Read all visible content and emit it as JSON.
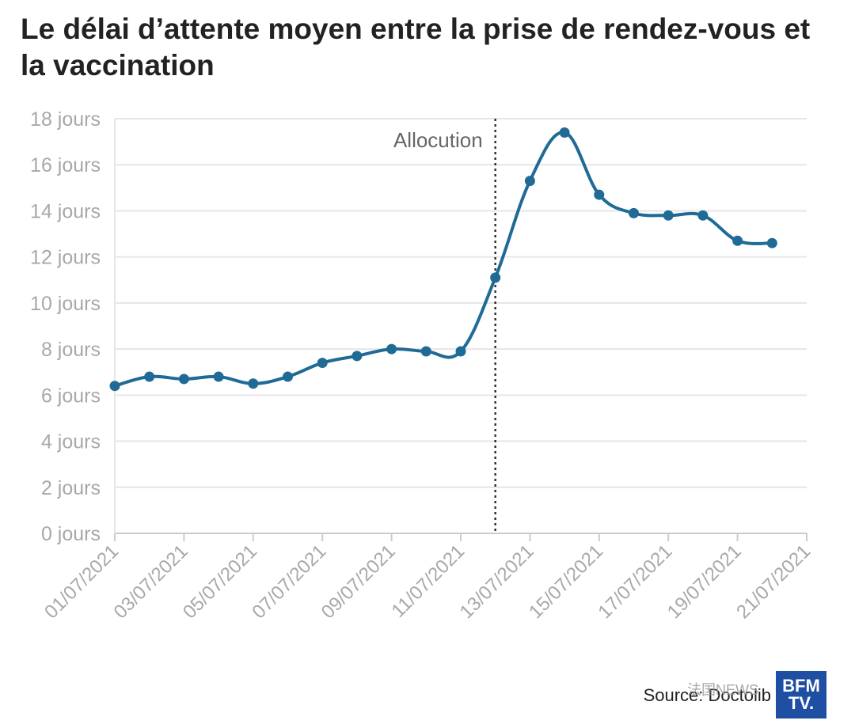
{
  "chart_data": {
    "type": "line",
    "title": "Le délai d’attente moyen entre la prise de rendez-vous et la vaccination",
    "xlabel": "",
    "ylabel": "",
    "ylim": [
      0,
      18
    ],
    "y_ticks": [
      0,
      2,
      4,
      6,
      8,
      10,
      12,
      14,
      16,
      18
    ],
    "y_tick_labels": [
      "0 jours",
      "2 jours",
      "4 jours",
      "6 jours",
      "8 jours",
      "10 jours",
      "12 jours",
      "14 jours",
      "16 jours",
      "18 jours"
    ],
    "x_tick_labels": [
      "01/07/2021",
      "03/07/2021",
      "05/07/2021",
      "07/07/2021",
      "09/07/2021",
      "11/07/2021",
      "13/07/2021",
      "15/07/2021",
      "17/07/2021",
      "19/07/2021",
      "21/07/2021"
    ],
    "x_day_range": [
      1,
      21
    ],
    "series": [
      {
        "name": "Délai d’attente moyen",
        "color": "#1f6b95",
        "x_days": [
          1,
          2,
          3,
          4,
          5,
          6,
          7,
          8,
          9,
          10,
          11,
          12,
          13,
          14,
          15,
          16,
          17,
          18,
          19,
          20
        ],
        "values": [
          6.4,
          6.8,
          6.7,
          6.8,
          6.5,
          6.8,
          7.4,
          7.7,
          8.0,
          7.9,
          7.9,
          11.1,
          15.3,
          17.4,
          14.7,
          13.9,
          13.8,
          13.8,
          12.7,
          12.6
        ]
      }
    ],
    "annotation": {
      "label": "Allocution",
      "x_day": 12.0
    },
    "grid": true,
    "source": "Source: Doctolib"
  },
  "watermark": {
    "text": "法国NEWS",
    "logo_top": "BFM",
    "logo_bottom": "TV."
  }
}
